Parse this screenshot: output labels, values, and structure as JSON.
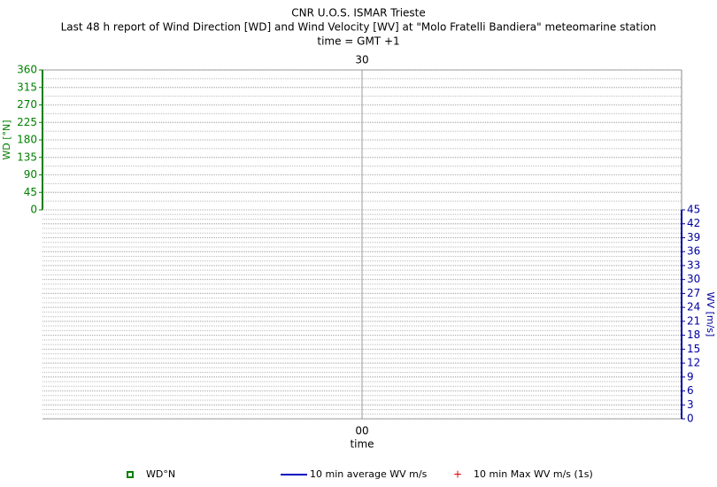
{
  "chart_data": [
    {
      "type": "line",
      "title": "CNR U.O.S. ISMAR Trieste",
      "subtitle": "Last 48 h report of Wind Direction [WD] and Wind Velocity [WV] at \"Molo Fratelli Bandiera\" meteomarine station",
      "note": "time = GMT +1",
      "top_tick": "30",
      "ylabel": "WD [°N]",
      "ylim": [
        0,
        360
      ],
      "yticks": [
        0,
        45,
        90,
        135,
        180,
        225,
        270,
        315,
        360
      ],
      "axis_color": "#008000",
      "grid": true,
      "series": [
        {
          "name": "WD°N",
          "color": "#008000",
          "values": []
        }
      ]
    },
    {
      "type": "line",
      "xtick": "00",
      "xlabel": "time",
      "ylabel": "WV [m/s]",
      "ylim": [
        0,
        45
      ],
      "yticks": [
        0,
        3,
        6,
        9,
        12,
        15,
        18,
        21,
        24,
        27,
        30,
        33,
        36,
        39,
        42,
        45
      ],
      "axis_color": "#0000a0",
      "grid": true,
      "series": [
        {
          "name": "10 min average WV m/s",
          "color": "#0000c0",
          "values": []
        },
        {
          "name": "10 min Max WV m/s (1s)",
          "color": "#e00000",
          "values": []
        }
      ]
    }
  ]
}
